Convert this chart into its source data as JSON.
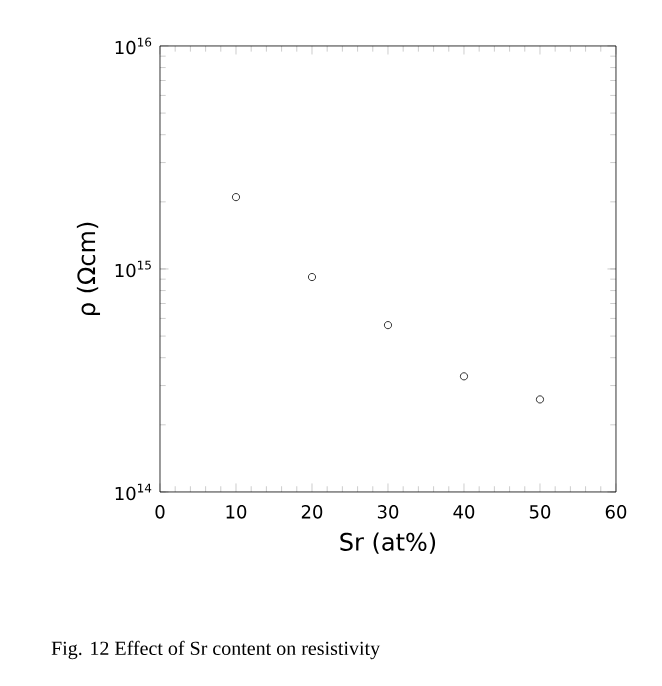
{
  "chart_data": {
    "type": "scatter",
    "xlabel": "Sr (at%)",
    "ylabel": "ρ (Ωcm)",
    "x": [
      10,
      20,
      30,
      40,
      50
    ],
    "values": [
      2100000000000000.0,
      920000000000000.0,
      560000000000000.0,
      330000000000000.0,
      260000000000000.0
    ],
    "color": "#000000",
    "marker": "circle",
    "log": "y",
    "grid": false,
    "xlim": [
      0,
      60
    ],
    "xticks": [
      0,
      10,
      20,
      30,
      40,
      50,
      60
    ],
    "ylim": [
      100000000000000.0,
      1e+16
    ],
    "yticks": [
      {
        "value": 100000000000000.0,
        "label": "10$^{14}$"
      },
      {
        "value": 1000000000000000.0,
        "label": "10$^{15}$"
      },
      {
        "value": 1e+16,
        "label": "10$^{16}$"
      }
    ],
    "annotations": [
      "Fig. 12  Effect of Sr content on resistivity"
    ]
  }
}
